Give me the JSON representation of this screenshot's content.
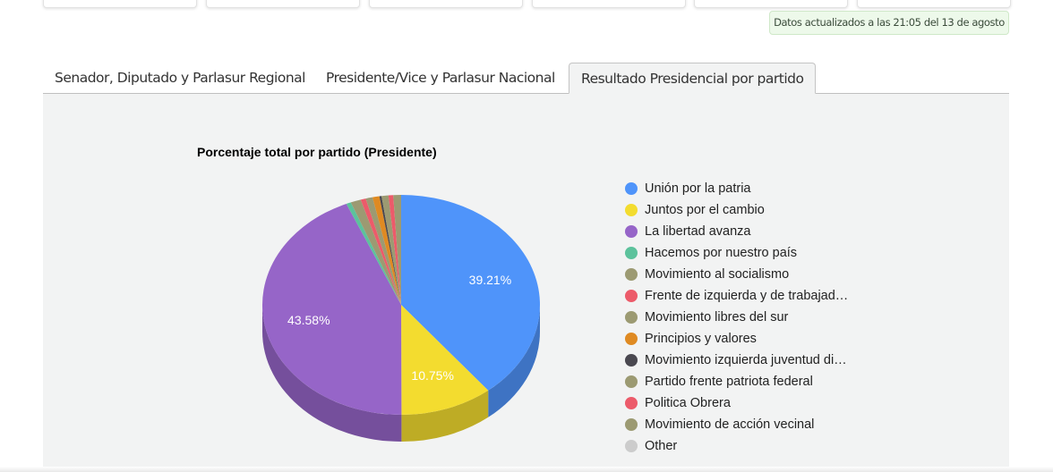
{
  "banner": {
    "text": "Datos actualizados a las 21:05 del 13 de agosto"
  },
  "tabs": [
    {
      "label": "Senador, Diputado y Parlasur Regional",
      "active": false
    },
    {
      "label": "Presidente/Vice y Parlasur Nacional",
      "active": false
    },
    {
      "label": "Resultado Presidencial por partido",
      "active": true
    }
  ],
  "chart_data": {
    "type": "pie",
    "style": "3d",
    "title": "Porcentaje total por partido (Presidente)",
    "legend_position": "right",
    "series": [
      {
        "name": "Unión por la patria",
        "value": 39.21,
        "color": "#4f94fa",
        "label": "39.21%"
      },
      {
        "name": "Juntos por el cambio",
        "value": 10.75,
        "color": "#f3dc2f",
        "label": "10.75%"
      },
      {
        "name": "La libertad avanza",
        "value": 43.58,
        "color": "#9665c8",
        "label": "43.58%"
      },
      {
        "name": "Hacemos por nuestro país",
        "value": 0.55,
        "color": "#5cc29c",
        "label": ""
      },
      {
        "name": "Movimiento al socialismo",
        "value": 1.2,
        "color": "#9c9a72",
        "label": ""
      },
      {
        "name": "Frente de izquierda y de trabajad…",
        "value": 0.6,
        "color": "#ec5b6a",
        "label": ""
      },
      {
        "name": "Movimiento libres del sur",
        "value": 0.8,
        "color": "#9c9a72",
        "label": ""
      },
      {
        "name": "Principios y valores",
        "value": 0.8,
        "color": "#df8a22",
        "label": ""
      },
      {
        "name": "Movimiento izquierda juventud di…",
        "value": 0.25,
        "color": "#4a4850",
        "label": ""
      },
      {
        "name": "Partido frente patriota federal",
        "value": 0.8,
        "color": "#9c9a72",
        "label": ""
      },
      {
        "name": "Politica Obrera",
        "value": 0.55,
        "color": "#ec5b6a",
        "label": ""
      },
      {
        "name": "Movimiento de acción vecinal",
        "value": 0.91,
        "color": "#9c9a72",
        "label": ""
      },
      {
        "name": "Other",
        "value": 0,
        "color": "#cccccc",
        "label": ""
      }
    ]
  }
}
